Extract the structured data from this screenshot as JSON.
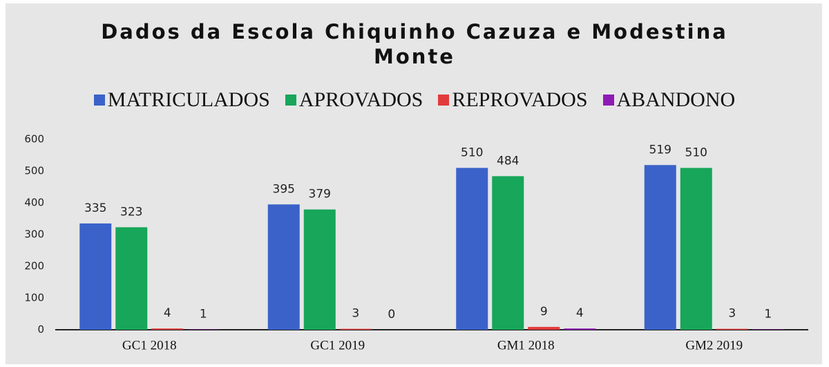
{
  "chart_data": {
    "type": "bar",
    "title": "Dados da Escola Chiquinho Cazuza e Modestina Monte",
    "categories": [
      "GC1 2018",
      "GC1 2019",
      "GM1 2018",
      "GM2 2019"
    ],
    "series": [
      {
        "name": "MATRICULADOS",
        "color": "#3a62c9",
        "values": [
          335,
          395,
          510,
          519
        ]
      },
      {
        "name": "APROVADOS",
        "color": "#17a65a",
        "values": [
          323,
          379,
          484,
          510
        ]
      },
      {
        "name": "REPROVADOS",
        "color": "#e23b3b",
        "values": [
          4,
          3,
          9,
          3
        ]
      },
      {
        "name": "ABANDONO",
        "color": "#8e1bb5",
        "values": [
          1,
          0,
          4,
          1
        ]
      }
    ],
    "ylim": [
      0,
      600
    ],
    "yticks": [
      0,
      100,
      200,
      300,
      400,
      500,
      600
    ],
    "grid": false,
    "legend": "top"
  }
}
